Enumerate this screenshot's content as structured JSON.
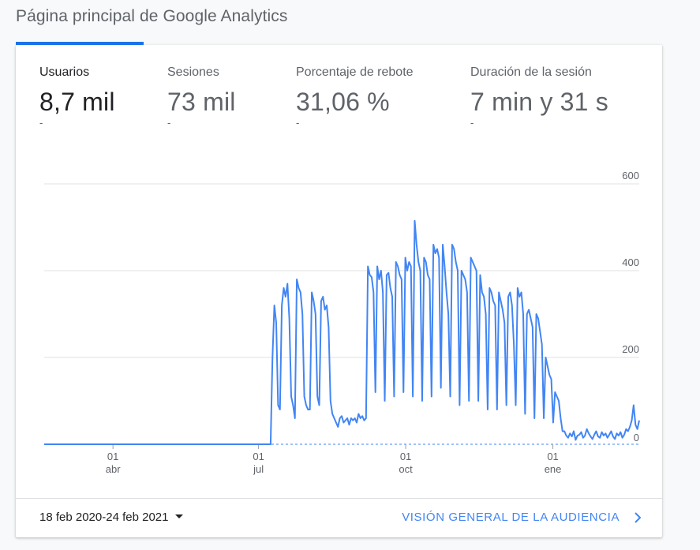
{
  "page": {
    "title": "Página principal de Google Analytics"
  },
  "metrics": [
    {
      "label": "Usuarios",
      "value": "8,7 mil",
      "change": "-"
    },
    {
      "label": "Sesiones",
      "value": "73 mil",
      "change": "-"
    },
    {
      "label": "Porcentaje de rebote",
      "value": "31,06 %",
      "change": "-"
    },
    {
      "label": "Duración de la sesión",
      "value": "7 min y 31 s",
      "change": "-"
    }
  ],
  "footer": {
    "date_range": "18 feb 2020-24 feb 2021",
    "overview_link": "VISIÓN GENERAL DE LA AUDIENCIA"
  },
  "colors": {
    "accent": "#1a73e8",
    "line": "#4285f4",
    "link": "#4285f4"
  },
  "chart_data": {
    "type": "line",
    "title": "",
    "xlabel": "",
    "ylabel": "",
    "ylim": [
      0,
      600
    ],
    "yticks": [
      0,
      200,
      400,
      600
    ],
    "x_tick_labels": [
      {
        "day": "01",
        "month": "abr"
      },
      {
        "day": "01",
        "month": "jul"
      },
      {
        "day": "01",
        "month": "oct"
      },
      {
        "day": "01",
        "month": "ene"
      }
    ],
    "grid": true,
    "series": [
      {
        "x_start": "2020-02-18",
        "x_end": "2021-02-24",
        "values": [
          0,
          0,
          0,
          0,
          0,
          0,
          0,
          0,
          0,
          0,
          0,
          0,
          0,
          0,
          0,
          0,
          0,
          0,
          0,
          0,
          0,
          0,
          0,
          0,
          0,
          0,
          0,
          0,
          0,
          0,
          0,
          0,
          0,
          0,
          0,
          0,
          0,
          0,
          0,
          0,
          0,
          0,
          0,
          0,
          0,
          0,
          0,
          0,
          0,
          0,
          0,
          0,
          0,
          0,
          0,
          0,
          0,
          0,
          0,
          0,
          0,
          0,
          0,
          0,
          0,
          0,
          0,
          0,
          0,
          0,
          0,
          0,
          0,
          0,
          0,
          0,
          0,
          0,
          0,
          0,
          0,
          0,
          0,
          0,
          0,
          0,
          0,
          0,
          0,
          0,
          0,
          0,
          0,
          0,
          0,
          0,
          0,
          0,
          0,
          0,
          0,
          0,
          0,
          0,
          0,
          0,
          0,
          0,
          0,
          0,
          0,
          0,
          0,
          0,
          0,
          0,
          0,
          0,
          0,
          0,
          0,
          0,
          200,
          320,
          280,
          90,
          80,
          320,
          360,
          340,
          370,
          290,
          110,
          90,
          60,
          380,
          360,
          350,
          300,
          110,
          90,
          80,
          80,
          350,
          330,
          300,
          110,
          90,
          330,
          340,
          310,
          320,
          270,
          100,
          70,
          60,
          50,
          40,
          60,
          65,
          50,
          55,
          60,
          45,
          60,
          55,
          60,
          50,
          70,
          60,
          65,
          55,
          60,
          410,
          390,
          385,
          350,
          120,
          410,
          380,
          400,
          350,
          100,
          390,
          395,
          360,
          340,
          110,
          420,
          410,
          390,
          380,
          120,
          430,
          400,
          420,
          410,
          110,
          515,
          460,
          420,
          400,
          100,
          430,
          420,
          390,
          380,
          110,
          460,
          440,
          450,
          430,
          130,
          460,
          410,
          350,
          300,
          110,
          460,
          450,
          420,
          400,
          90,
          400,
          390,
          380,
          350,
          100,
          430,
          420,
          410,
          400,
          100,
          390,
          350,
          340,
          300,
          80,
          360,
          350,
          330,
          320,
          80,
          350,
          330,
          310,
          280,
          90,
          340,
          350,
          320,
          230,
          90,
          360,
          340,
          350,
          300,
          70,
          300,
          310,
          290,
          270,
          60,
          300,
          290,
          260,
          230,
          60,
          200,
          180,
          160,
          150,
          50,
          120,
          110,
          100,
          60,
          30,
          30,
          20,
          15,
          25,
          18,
          30,
          10,
          20,
          22,
          28,
          15,
          20,
          35,
          25,
          18,
          12,
          22,
          30,
          18,
          15,
          28,
          20,
          25,
          15,
          22,
          30,
          18,
          12,
          25,
          20,
          28,
          15,
          22,
          35,
          30,
          40,
          55,
          90,
          45,
          35,
          55
        ]
      }
    ]
  }
}
